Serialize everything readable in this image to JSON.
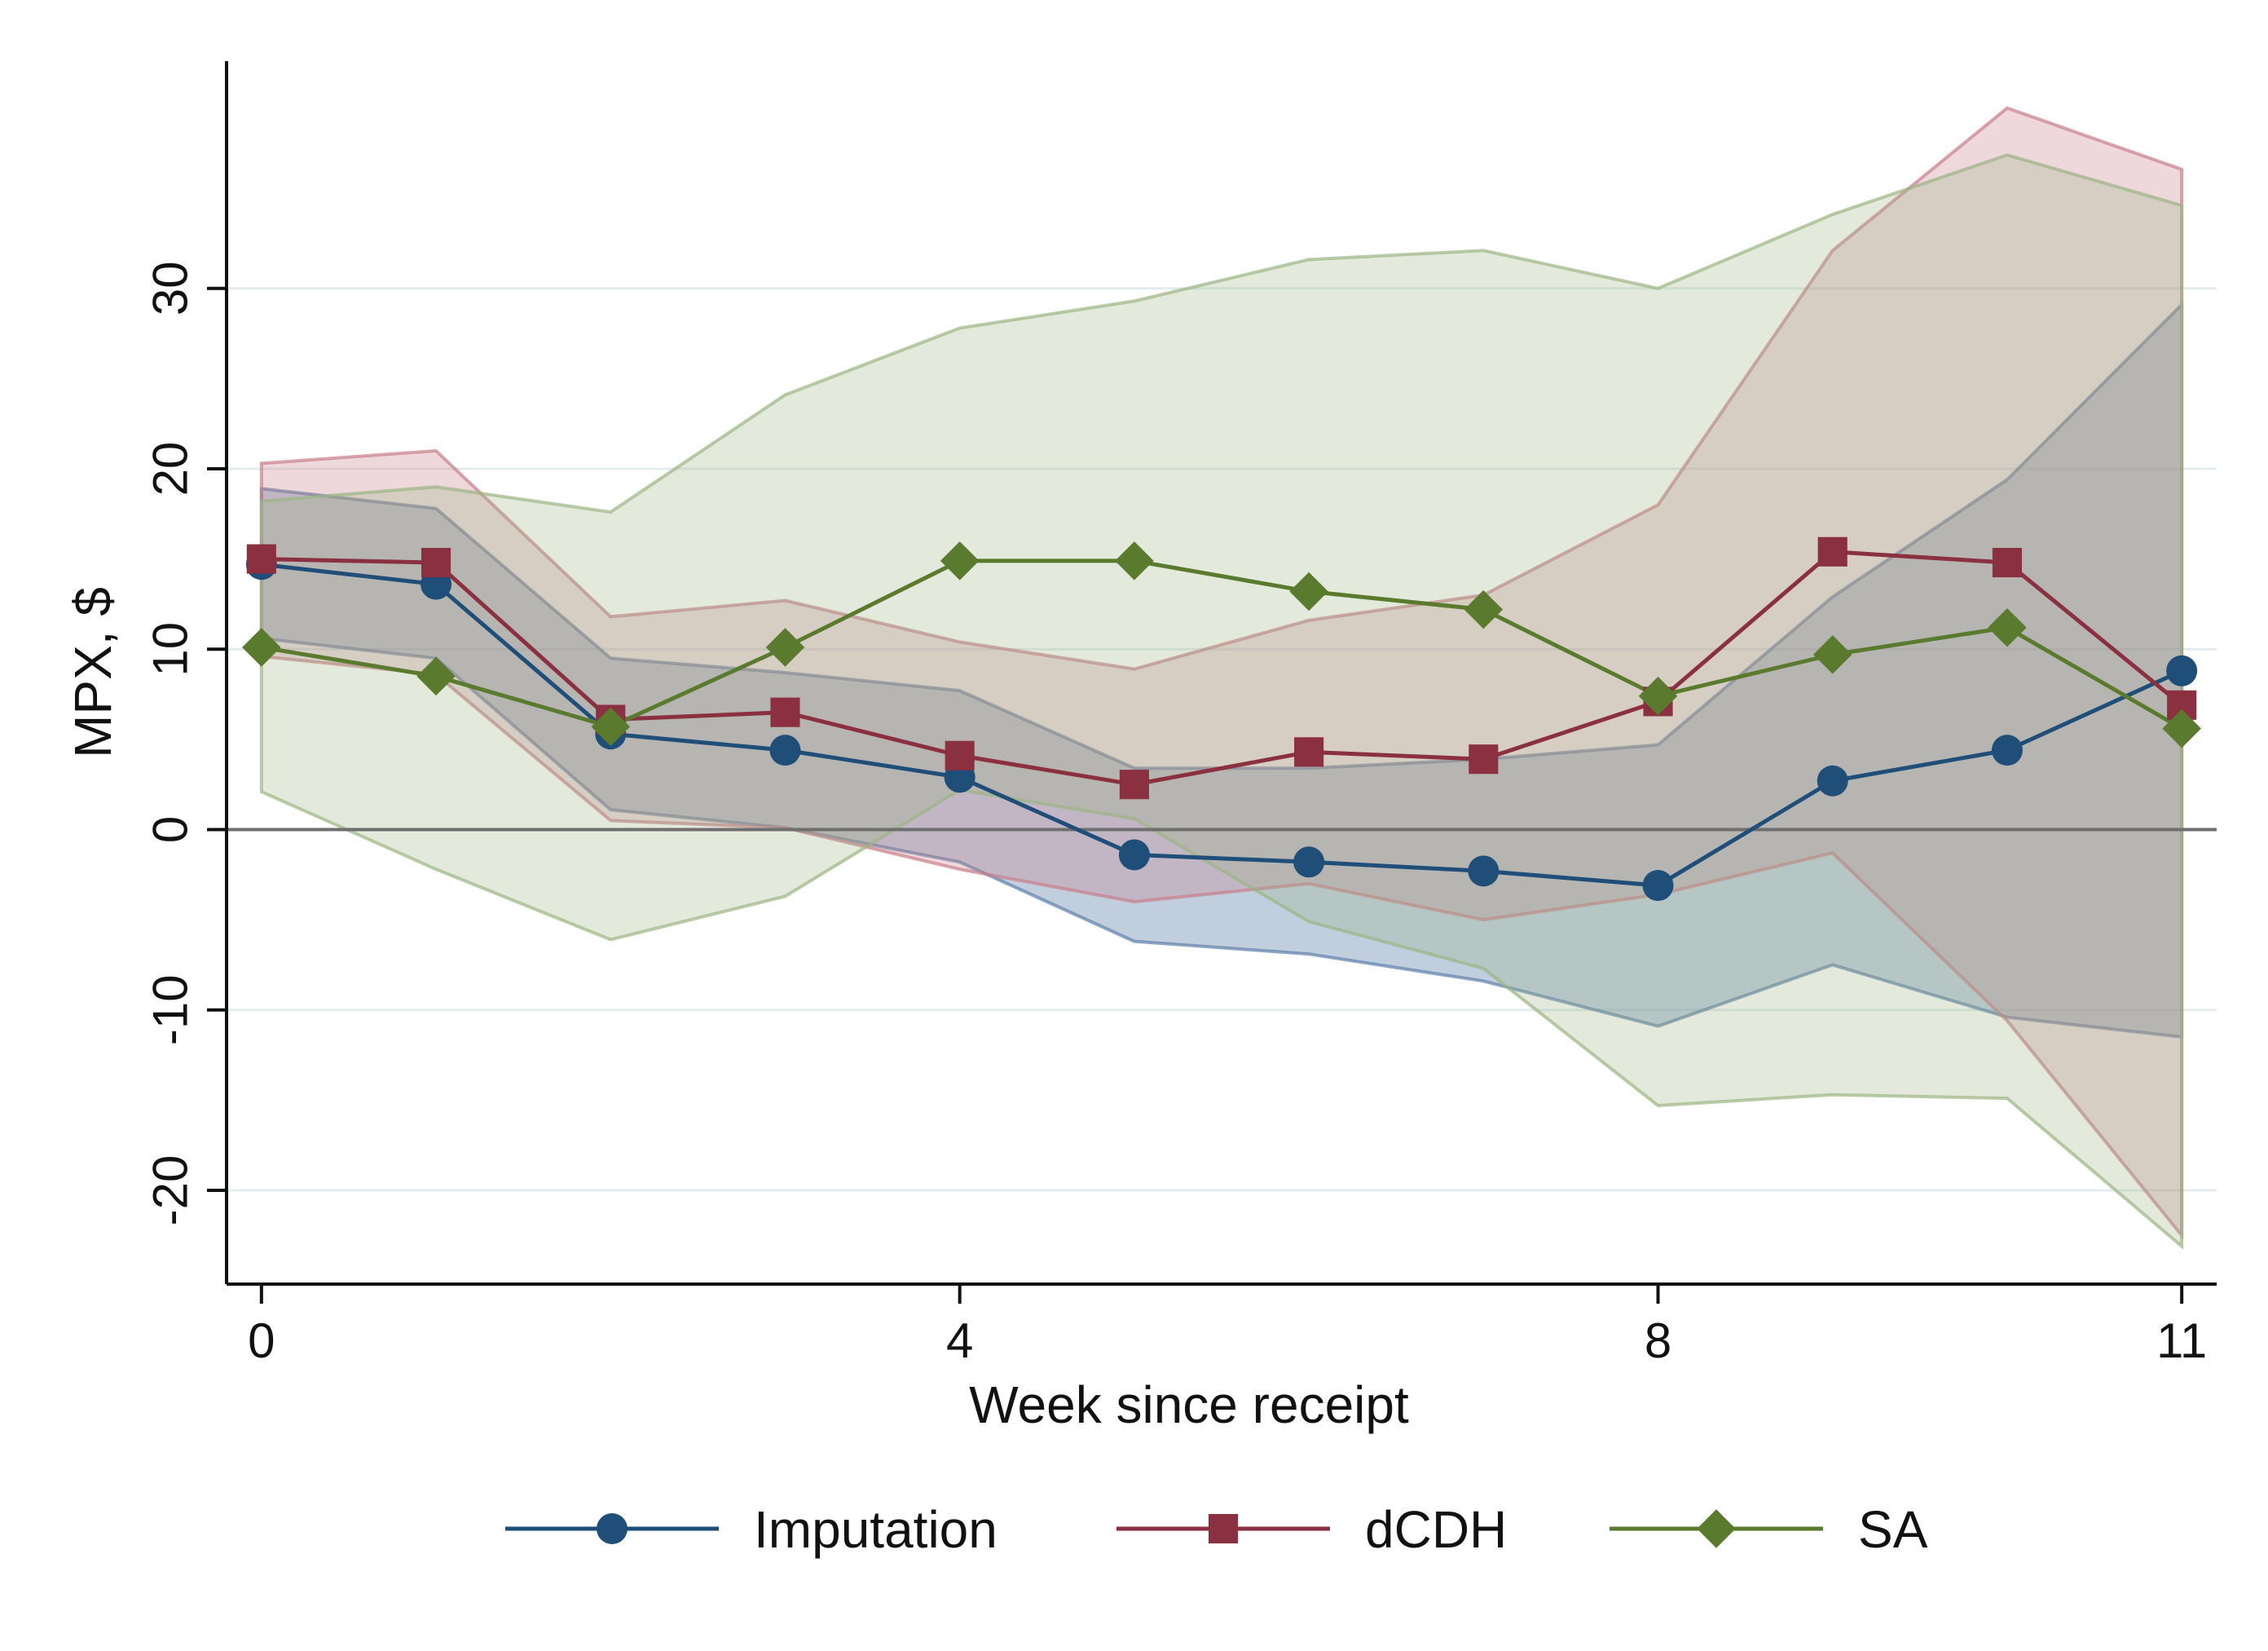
{
  "chart_data": {
    "type": "line",
    "title": "",
    "xlabel": "Week since receipt",
    "ylabel": "MPX, $",
    "xlim": [
      -0.2,
      11.2
    ],
    "ylim": [
      -25.2,
      42.6
    ],
    "xticks": [
      0,
      4,
      8,
      11
    ],
    "xtick_labels": [
      "0",
      "4",
      "8",
      "11"
    ],
    "yticks": [
      -20,
      -10,
      0,
      10,
      20,
      30
    ],
    "ytick_labels": [
      "-20",
      "-10",
      "0",
      "10",
      "20",
      "30"
    ],
    "grid": true,
    "reference_line_y": 0,
    "legend_position": "bottom",
    "x": [
      0,
      1,
      2,
      3,
      4,
      5,
      6,
      7,
      8,
      9,
      10,
      11
    ],
    "series": [
      {
        "name": "Imputation",
        "marker": "circle",
        "line_color": "#1f4e79",
        "band_color": "#5c7fa8",
        "band_opacity": 0.38,
        "values": [
          14.7,
          13.6,
          5.3,
          4.4,
          2.9,
          -1.4,
          -1.8,
          -2.3,
          -3.1,
          2.7,
          4.4,
          8.8
        ],
        "lower": [
          10.6,
          9.5,
          1.1,
          0.1,
          -1.8,
          -6.2,
          -6.9,
          -8.4,
          -10.9,
          -7.5,
          -10.4,
          -11.5
        ],
        "upper": [
          18.9,
          17.8,
          9.5,
          8.7,
          7.7,
          3.4,
          3.4,
          3.9,
          4.7,
          12.9,
          19.4,
          29.1
        ]
      },
      {
        "name": "dCDH",
        "marker": "square",
        "line_color": "#8b3040",
        "band_color": "#c77f8a",
        "band_opacity": 0.3,
        "values": [
          15.0,
          14.8,
          6.1,
          6.5,
          4.1,
          2.5,
          4.3,
          3.9,
          7.1,
          15.4,
          14.8,
          6.9
        ],
        "lower": [
          9.6,
          8.6,
          0.5,
          0.1,
          -2.2,
          -4.0,
          -3.0,
          -5.0,
          -3.6,
          -1.3,
          -10.6,
          -22.5
        ],
        "upper": [
          20.3,
          21.0,
          11.8,
          12.7,
          10.4,
          8.9,
          11.6,
          13.0,
          18.0,
          32.1,
          40.0,
          36.6
        ]
      },
      {
        "name": "SA",
        "marker": "diamond",
        "line_color": "#5a7a2e",
        "band_color": "#9bb583",
        "band_opacity": 0.28,
        "values": [
          10.1,
          8.5,
          5.7,
          10.1,
          14.9,
          14.9,
          13.2,
          12.2,
          7.4,
          9.7,
          11.2,
          5.6
        ],
        "lower": [
          2.1,
          -2.2,
          -6.1,
          -3.7,
          2.2,
          0.6,
          -5.1,
          -7.7,
          -15.3,
          -14.7,
          -14.9,
          -23.1
        ],
        "upper": [
          18.2,
          19.0,
          17.6,
          24.1,
          27.8,
          29.3,
          31.6,
          32.1,
          30.0,
          34.1,
          37.4,
          34.6
        ]
      }
    ]
  }
}
